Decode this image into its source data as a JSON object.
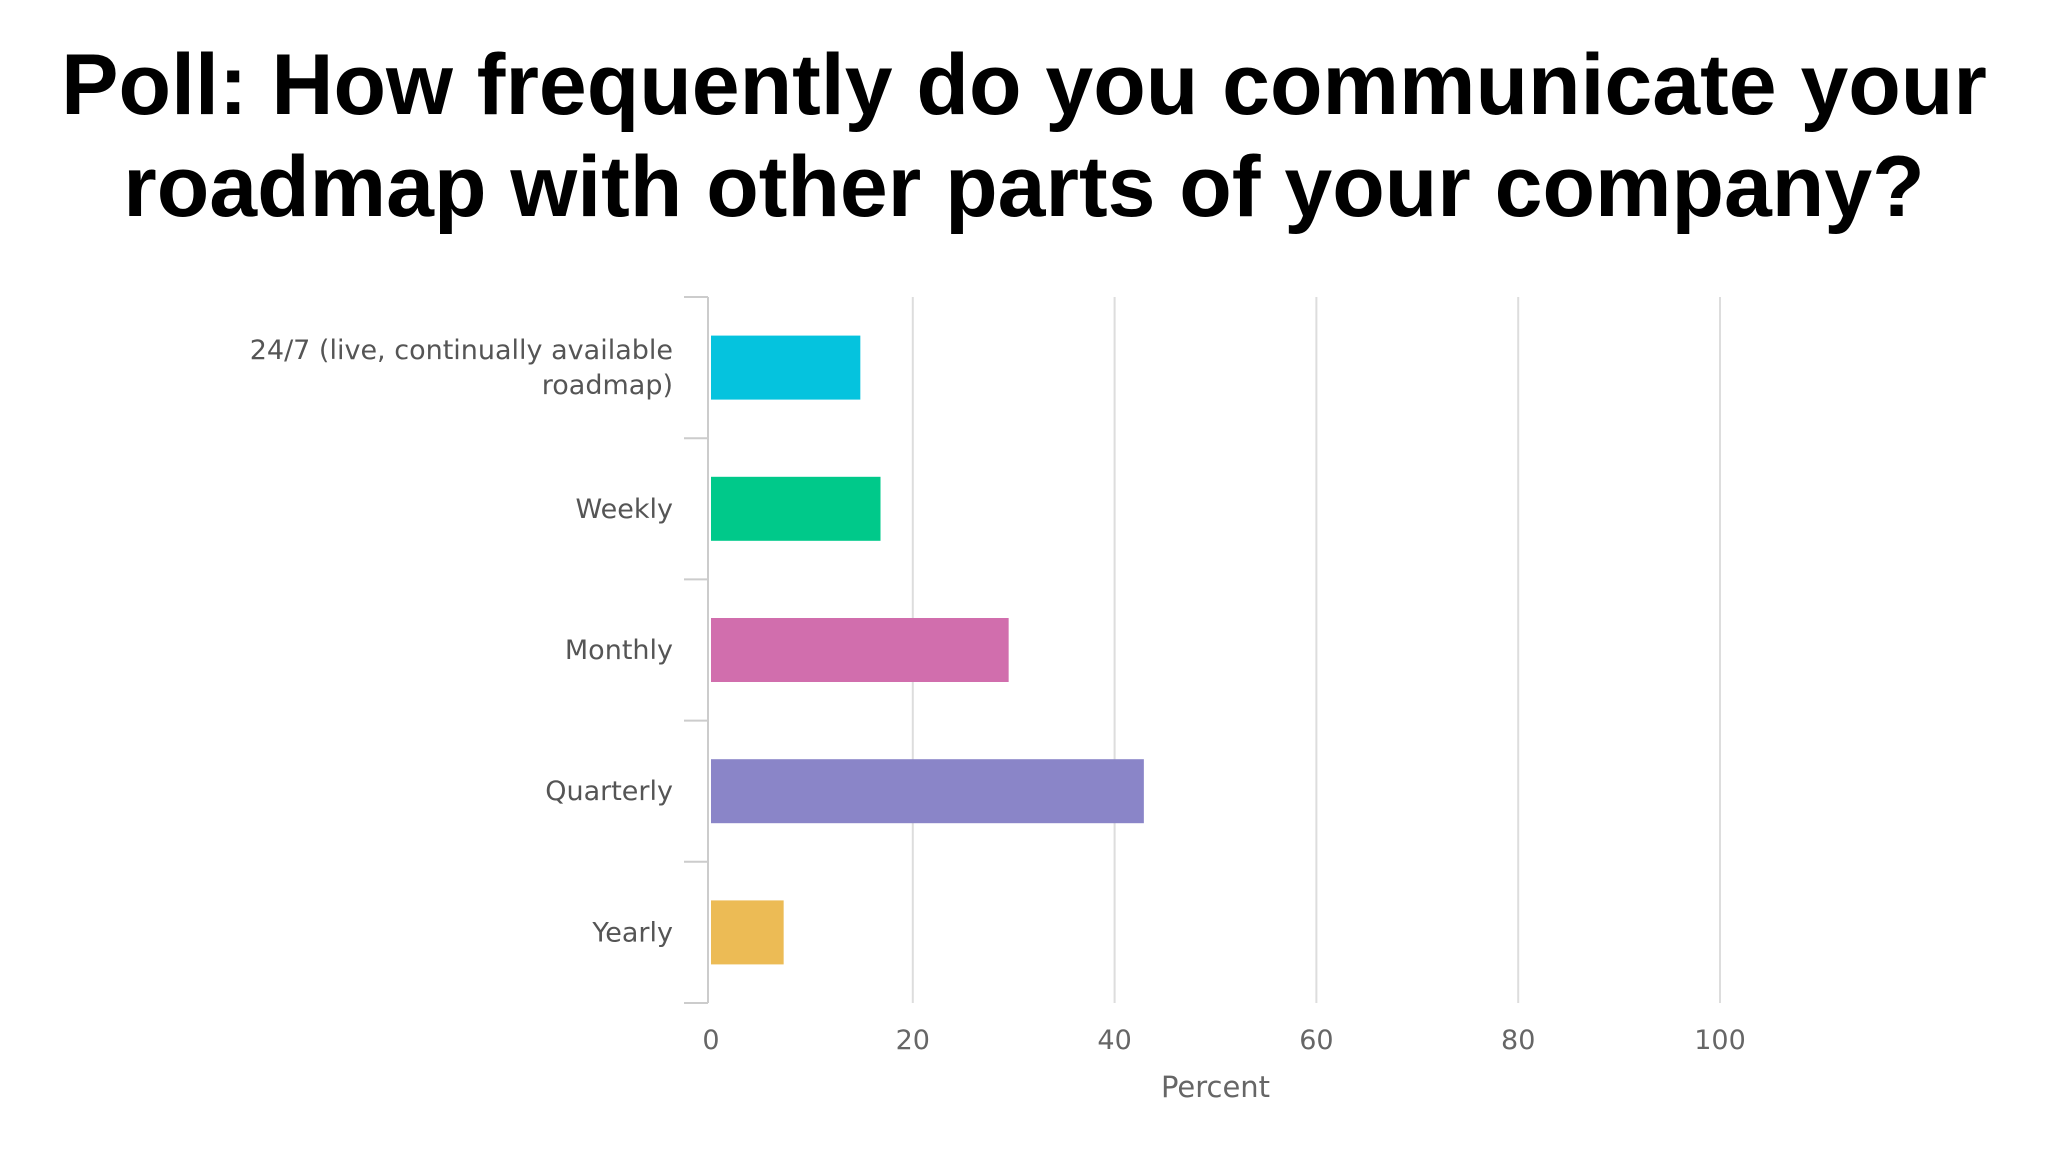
{
  "chart_data": {
    "type": "bar",
    "orientation": "horizontal",
    "title": "Poll: How frequently do you communicate your roadmap with other parts of your company?",
    "title_lines": [
      "Poll: How frequently do you communicate your",
      "roadmap with other parts of your company?"
    ],
    "categories": [
      "24/7 (live, continually available roadmap)",
      "Weekly",
      "Monthly",
      "Quarterly",
      "Yearly"
    ],
    "category_label_lines": [
      [
        "24/7 (live, continually available",
        "roadmap)"
      ],
      [
        "Weekly"
      ],
      [
        "Monthly"
      ],
      [
        "Quarterly"
      ],
      [
        "Yearly"
      ]
    ],
    "values": [
      14.8,
      16.8,
      29.5,
      42.9,
      7.2
    ],
    "colors": [
      "#05c3de",
      "#00c98a",
      "#d16ead",
      "#8a85c8",
      "#ecbb55"
    ],
    "xlabel": "Percent",
    "ylabel": "",
    "xlim": [
      0,
      100
    ],
    "xticks": [
      0,
      20,
      40,
      60,
      80,
      100
    ],
    "grid": true,
    "legend": "none"
  }
}
